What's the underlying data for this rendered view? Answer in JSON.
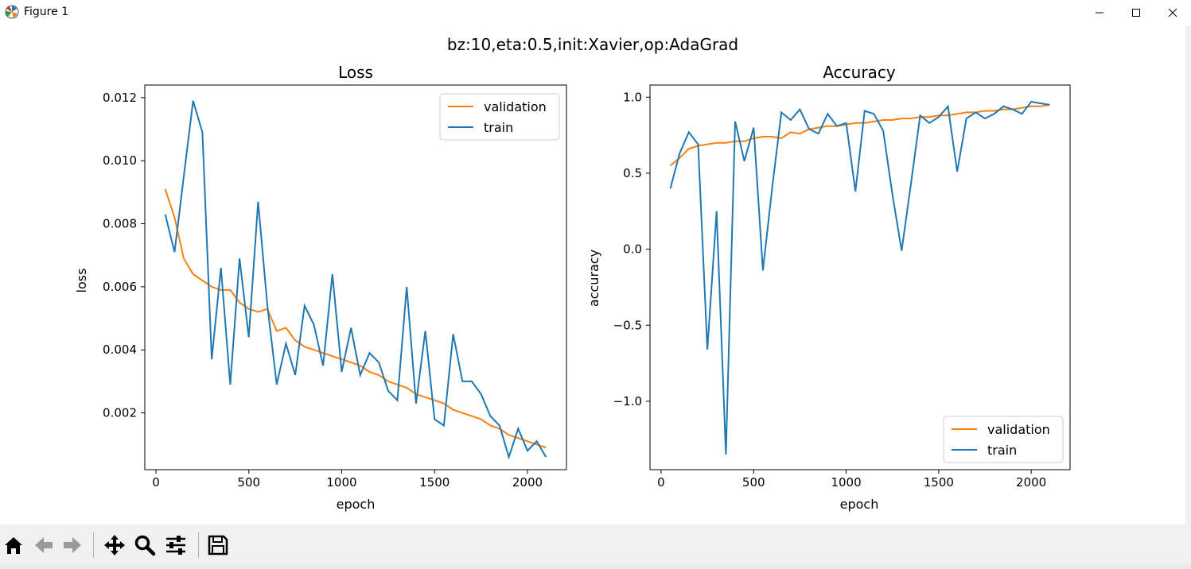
{
  "window": {
    "title": "Figure 1"
  },
  "figure": {
    "suptitle": "bz:10,eta:0.5,init:Xavier,op:AdaGrad"
  },
  "colors": {
    "validation": "#ff7f0e",
    "train": "#1f77b4"
  },
  "toolbar": {
    "icons": [
      "home-icon",
      "back-icon",
      "forward-icon",
      "pan-icon",
      "zoom-icon",
      "configure-subplots-icon",
      "save-icon"
    ]
  },
  "chart_data": [
    {
      "type": "line",
      "title": "Loss",
      "xlabel": "epoch",
      "ylabel": "loss",
      "xlim": [
        -60,
        2210
      ],
      "ylim": [
        0.0002,
        0.0124
      ],
      "xticks": [
        0,
        500,
        1000,
        1500,
        2000
      ],
      "xtick_labels": [
        "0",
        "500",
        "1000",
        "1500",
        "2000"
      ],
      "yticks": [
        0.002,
        0.004,
        0.006,
        0.008,
        0.01,
        0.012
      ],
      "ytick_labels": [
        "0.002",
        "0.004",
        "0.006",
        "0.008",
        "0.010",
        "0.012"
      ],
      "legend": {
        "position": "upper right"
      },
      "x": [
        50,
        100,
        150,
        200,
        250,
        300,
        350,
        400,
        450,
        500,
        550,
        600,
        650,
        700,
        750,
        800,
        850,
        900,
        950,
        1000,
        1050,
        1100,
        1150,
        1200,
        1250,
        1300,
        1350,
        1400,
        1450,
        1500,
        1550,
        1600,
        1650,
        1700,
        1750,
        1800,
        1850,
        1900,
        1950,
        2000,
        2050,
        2100
      ],
      "series": [
        {
          "name": "validation",
          "values": [
            0.0091,
            0.0082,
            0.0069,
            0.0064,
            0.0062,
            0.006,
            0.0059,
            0.0059,
            0.0055,
            0.0053,
            0.0052,
            0.0053,
            0.0046,
            0.0047,
            0.0043,
            0.0041,
            0.004,
            0.0039,
            0.0038,
            0.0037,
            0.0036,
            0.0035,
            0.0033,
            0.0032,
            0.003,
            0.0029,
            0.0028,
            0.0026,
            0.0025,
            0.0024,
            0.0023,
            0.0021,
            0.002,
            0.0019,
            0.0018,
            0.0016,
            0.0015,
            0.0013,
            0.0012,
            0.0011,
            0.001,
            0.0009
          ]
        },
        {
          "name": "train",
          "values": [
            0.0083,
            0.0071,
            0.0095,
            0.0119,
            0.0109,
            0.0037,
            0.0066,
            0.0029,
            0.0069,
            0.0044,
            0.0087,
            0.0054,
            0.0029,
            0.0042,
            0.0032,
            0.0054,
            0.0048,
            0.0035,
            0.0064,
            0.0033,
            0.0047,
            0.0032,
            0.0039,
            0.0036,
            0.0027,
            0.0024,
            0.006,
            0.0023,
            0.0046,
            0.0018,
            0.0016,
            0.0045,
            0.003,
            0.003,
            0.0026,
            0.0019,
            0.0016,
            0.0006,
            0.0015,
            0.0008,
            0.0011,
            0.0006
          ]
        }
      ]
    },
    {
      "type": "line",
      "title": "Accuracy",
      "xlabel": "epoch",
      "ylabel": "accuracy",
      "xlim": [
        -60,
        2210
      ],
      "ylim": [
        -1.45,
        1.08
      ],
      "xticks": [
        0,
        500,
        1000,
        1500,
        2000
      ],
      "xtick_labels": [
        "0",
        "500",
        "1000",
        "1500",
        "2000"
      ],
      "yticks": [
        -1.0,
        -0.5,
        0.0,
        0.5,
        1.0
      ],
      "ytick_labels": [
        "−1.0",
        "−0.5",
        "0.0",
        "0.5",
        "1.0"
      ],
      "legend": {
        "position": "lower right"
      },
      "x": [
        50,
        100,
        150,
        200,
        250,
        300,
        350,
        400,
        450,
        500,
        550,
        600,
        650,
        700,
        750,
        800,
        850,
        900,
        950,
        1000,
        1050,
        1100,
        1150,
        1200,
        1250,
        1300,
        1350,
        1400,
        1450,
        1500,
        1550,
        1600,
        1650,
        1700,
        1750,
        1800,
        1850,
        1900,
        1950,
        2000,
        2050,
        2100
      ],
      "series": [
        {
          "name": "validation",
          "values": [
            0.55,
            0.6,
            0.66,
            0.68,
            0.69,
            0.7,
            0.7,
            0.71,
            0.71,
            0.73,
            0.74,
            0.74,
            0.73,
            0.77,
            0.76,
            0.79,
            0.8,
            0.81,
            0.81,
            0.82,
            0.83,
            0.83,
            0.84,
            0.85,
            0.85,
            0.86,
            0.86,
            0.87,
            0.87,
            0.88,
            0.88,
            0.89,
            0.9,
            0.9,
            0.91,
            0.91,
            0.92,
            0.92,
            0.93,
            0.94,
            0.94,
            0.95
          ]
        },
        {
          "name": "train",
          "values": [
            0.4,
            0.63,
            0.77,
            0.69,
            -0.66,
            0.25,
            -1.35,
            0.84,
            0.58,
            0.8,
            -0.14,
            0.4,
            0.9,
            0.85,
            0.92,
            0.79,
            0.76,
            0.89,
            0.81,
            0.83,
            0.38,
            0.91,
            0.89,
            0.78,
            0.36,
            -0.01,
            0.43,
            0.88,
            0.83,
            0.87,
            0.94,
            0.51,
            0.86,
            0.9,
            0.86,
            0.89,
            0.94,
            0.92,
            0.89,
            0.97,
            0.96,
            0.95
          ]
        }
      ]
    }
  ]
}
